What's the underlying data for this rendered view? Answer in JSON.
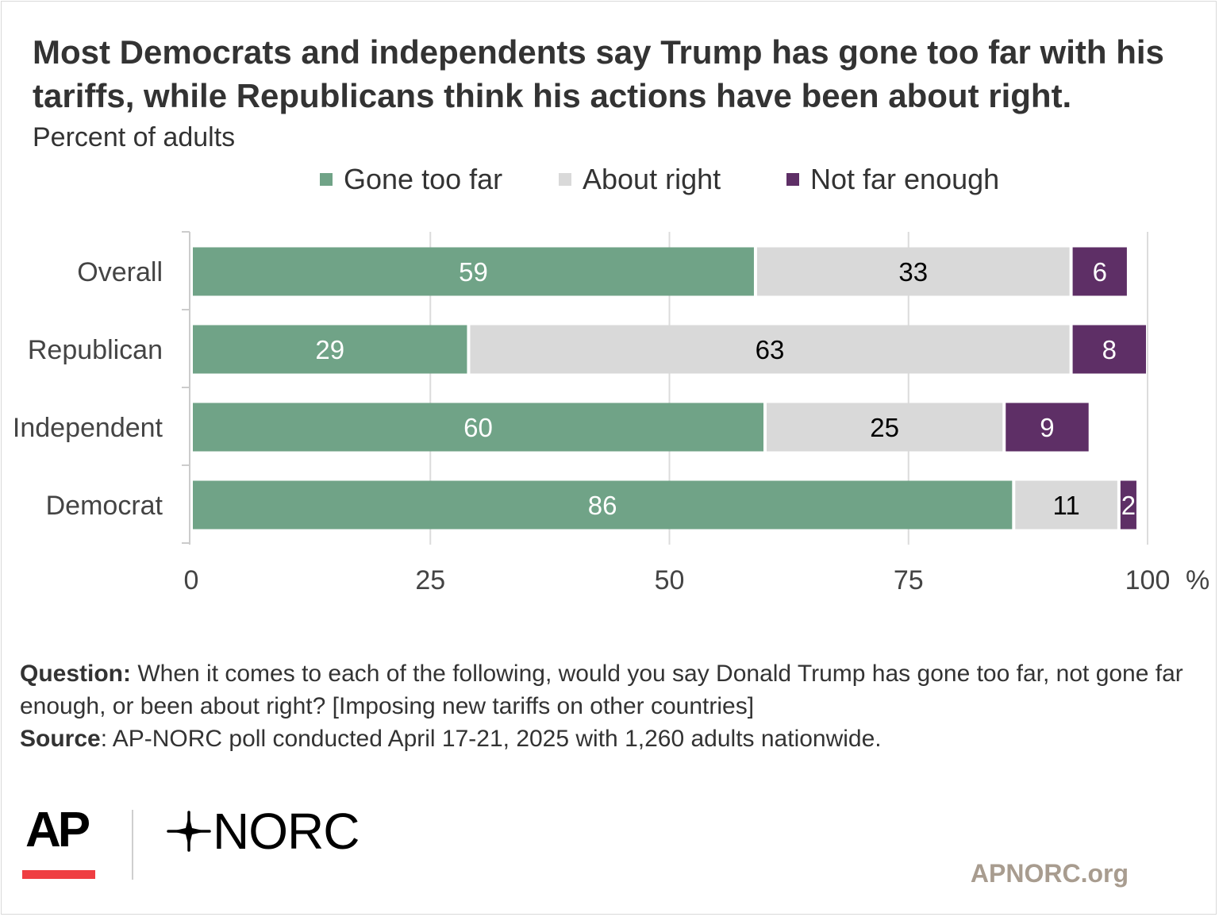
{
  "title": "Most Democrats and independents say Trump has gone too far with his tariffs, while Republicans think his actions have been about right.",
  "subtitle": "Percent of adults",
  "legend": [
    {
      "label": "Gone too far",
      "color": "#70a387"
    },
    {
      "label": "About right",
      "color": "#d9d9d9"
    },
    {
      "label": "Not far enough",
      "color": "#5e2f66"
    }
  ],
  "chart_data": {
    "type": "bar",
    "orientation": "horizontal",
    "stacked": true,
    "categories": [
      "Overall",
      "Republican",
      "Independent",
      "Democrat"
    ],
    "series": [
      {
        "name": "Gone too far",
        "color": "#70a387",
        "label_color": "#ffffff",
        "values": [
          59,
          29,
          60,
          86
        ]
      },
      {
        "name": "About right",
        "color": "#d9d9d9",
        "label_color": "#000000",
        "values": [
          33,
          63,
          25,
          11
        ]
      },
      {
        "name": "Not far enough",
        "color": "#5e2f66",
        "label_color": "#ffffff",
        "values": [
          6,
          8,
          9,
          2
        ]
      }
    ],
    "xlim": [
      0,
      100
    ],
    "xticks": [
      {
        "value": 0,
        "label": "0"
      },
      {
        "value": 25,
        "label": "25"
      },
      {
        "value": 50,
        "label": "50"
      },
      {
        "value": 75,
        "label": "75"
      },
      {
        "value": 100,
        "label": "100"
      }
    ],
    "x_unit": "%",
    "grid": true
  },
  "footnote": {
    "question_label": "Question:",
    "question_text": " When it comes to each of the following, would you say Donald Trump has gone too far, not gone far enough, or been about right? [Imposing new tariffs on other countries]",
    "source_label": "Source",
    "source_text": ": AP-NORC poll conducted April 17-21, 2025 with 1,260 adults nationwide."
  },
  "logos": {
    "ap": "AP",
    "norc": "NORC",
    "ap_accent_color": "#ef3e42"
  },
  "site": "APNORC.org"
}
